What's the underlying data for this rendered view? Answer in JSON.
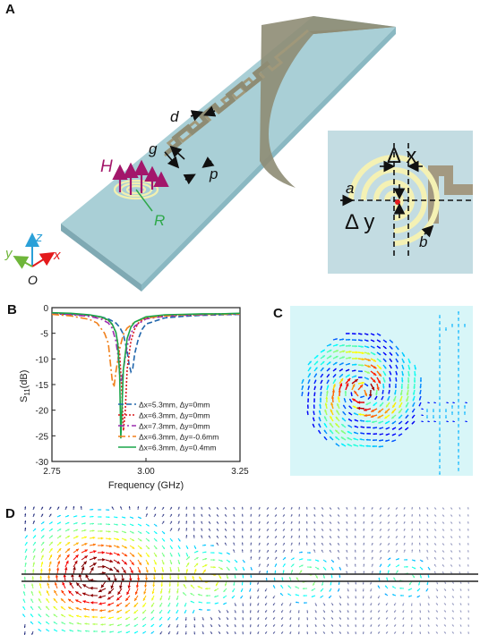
{
  "panels": {
    "a": "A",
    "b": "B",
    "c": "C",
    "d": "D"
  },
  "panel_a": {
    "H": "H",
    "R": "R",
    "d": "d",
    "g": "g",
    "p": "p",
    "a": "a",
    "b": "b",
    "dx": "Δ x",
    "dy": "Δ y",
    "axis_z": "z",
    "axis_x": "x",
    "axis_y": "y",
    "origin": "O",
    "colors": {
      "substrate": "#a9cfd6",
      "metal": "#8e8c74",
      "spiral": "#f2f0b0",
      "magenta": "#a3176b",
      "green": "#2ea84a"
    }
  },
  "chart_data": {
    "type": "line",
    "x_label": "Frequency (GHz)",
    "y_label_main": "S",
    "y_label_sub": "11",
    "y_label_unit": "(dB)",
    "xlim": [
      2.75,
      3.25
    ],
    "ylim": [
      -30,
      0
    ],
    "x_ticks": [
      "2.75",
      "3.00",
      "3.25"
    ],
    "y_ticks": [
      "0",
      "-5",
      "-10",
      "-15",
      "-20",
      "-25",
      "-30"
    ],
    "series": [
      {
        "name": "Δx=5.3mm, Δy=0mm",
        "color": "#2166ac",
        "dash": "6,3",
        "x": [
          2.75,
          2.8,
          2.85,
          2.88,
          2.9,
          2.92,
          2.93,
          2.94,
          2.95,
          2.955,
          2.96,
          2.965,
          2.97,
          2.98,
          2.99,
          3.0,
          3.05,
          3.1,
          3.15,
          3.2,
          3.25
        ],
        "y": [
          -1.2,
          -1.3,
          -1.5,
          -1.8,
          -2.2,
          -3.0,
          -3.8,
          -5.2,
          -8.5,
          -11.0,
          -12.5,
          -11.8,
          -9.0,
          -6.0,
          -4.2,
          -3.2,
          -2.0,
          -1.7,
          -1.5,
          -1.4,
          -1.3
        ]
      },
      {
        "name": "Δx=6.3mm, Δy=0mm",
        "color": "#d7191c",
        "dash": "2,2",
        "x": [
          2.75,
          2.8,
          2.85,
          2.88,
          2.9,
          2.91,
          2.92,
          2.93,
          2.935,
          2.94,
          2.945,
          2.95,
          2.96,
          2.97,
          2.98,
          3.0,
          3.05,
          3.1,
          3.15,
          3.2,
          3.25
        ],
        "y": [
          -1.1,
          -1.2,
          -1.5,
          -1.9,
          -2.5,
          -3.3,
          -4.8,
          -9.0,
          -15.0,
          -24.0,
          -20.0,
          -12.0,
          -6.5,
          -4.2,
          -3.0,
          -2.0,
          -1.6,
          -1.4,
          -1.3,
          -1.2,
          -1.2
        ]
      },
      {
        "name": "Δx=7.3mm, Δy=0mm",
        "color": "#9b2fae",
        "dash": "7,3,2,3",
        "x": [
          2.75,
          2.8,
          2.85,
          2.88,
          2.9,
          2.91,
          2.92,
          2.925,
          2.93,
          2.935,
          2.94,
          2.95,
          2.96,
          2.97,
          3.0,
          3.05,
          3.1,
          3.15,
          3.2,
          3.25
        ],
        "y": [
          -1.2,
          -1.4,
          -1.7,
          -2.2,
          -3.0,
          -4.0,
          -6.5,
          -9.0,
          -13.0,
          -14.5,
          -12.0,
          -7.5,
          -5.0,
          -3.6,
          -2.2,
          -1.7,
          -1.5,
          -1.4,
          -1.3,
          -1.3
        ]
      },
      {
        "name": "Δx=6.3mm, Δy=-0.6mm",
        "color": "#f07f1a",
        "dash": "8,3,2,3",
        "x": [
          2.75,
          2.8,
          2.85,
          2.87,
          2.89,
          2.9,
          2.905,
          2.91,
          2.915,
          2.92,
          2.93,
          2.94,
          2.95,
          2.97,
          3.0,
          3.05,
          3.1,
          3.15,
          3.2,
          3.25
        ],
        "y": [
          -1.3,
          -1.6,
          -2.3,
          -3.0,
          -5.0,
          -7.0,
          -10.5,
          -14.0,
          -15.5,
          -12.5,
          -8.0,
          -5.2,
          -4.0,
          -2.8,
          -2.0,
          -1.6,
          -1.4,
          -1.3,
          -1.3,
          -1.2
        ]
      },
      {
        "name": "Δx=6.3mm, Δy=0.4mm",
        "color": "#1aa64a",
        "dash": "",
        "x": [
          2.75,
          2.8,
          2.85,
          2.88,
          2.9,
          2.91,
          2.92,
          2.925,
          2.93,
          2.933,
          2.936,
          2.94,
          2.95,
          2.96,
          2.97,
          3.0,
          3.05,
          3.1,
          3.15,
          3.2,
          3.25
        ],
        "y": [
          -1.0,
          -1.1,
          -1.4,
          -1.8,
          -2.4,
          -3.2,
          -4.8,
          -7.0,
          -13.0,
          -25.5,
          -20.0,
          -12.0,
          -6.0,
          -3.8,
          -2.8,
          -1.8,
          -1.4,
          -1.3,
          -1.2,
          -1.2,
          -1.1
        ]
      }
    ]
  }
}
